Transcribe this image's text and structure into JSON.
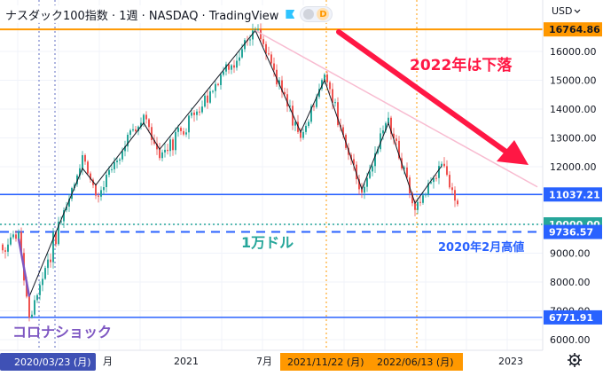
{
  "header": {
    "title": "ナスダック100指数 · 1週 · NASDAQ · TradingView",
    "currency": "USD",
    "d_badge": "D"
  },
  "annotations": {
    "decline": "2022年は下落",
    "ten_thousand": "1万ドル",
    "feb2020_high": "2020年2月高値",
    "covid_crash": "コロナショック"
  },
  "price_labels": {
    "top": "16764.86",
    "current": "11037.21",
    "ten_k": "10000.00",
    "feb_high": "9736.57",
    "covid_low": "6771.91"
  },
  "time_labels": {
    "left_date": "2020/03/23 (月)",
    "x_2021": "2021",
    "x_jul": "7月",
    "peak_date": "2021/11/22 (月)",
    "jun_date": "2022/06/13 (月)",
    "x_2023": "2023",
    "month_partial": "月"
  },
  "colors": {
    "up": "#26a69a",
    "down": "#ef5350",
    "level_line": "#2962ff",
    "top_line": "#ff9800",
    "annotation_red": "#ff1744",
    "teal_text": "#26a69a",
    "purple_text": "#7e57c2",
    "blue_text": "#2962ff",
    "trend_pink": "#f8bbd0"
  },
  "chart_data": {
    "type": "candlestick",
    "title": "ナスダック100指数",
    "timeframe": "1週",
    "exchange": "NASDAQ",
    "y_ticks": [
      6000,
      7000,
      8000,
      9000,
      10000,
      11000,
      12000,
      13000,
      14000,
      15000,
      16000
    ],
    "ylim": [
      5950,
      17350
    ],
    "x_tick_labels": [
      "2021",
      "7月",
      "2023"
    ],
    "horizontal_levels": [
      16764.86,
      11037.21,
      10000.0,
      9736.57,
      6771.91
    ],
    "key_points": [
      {
        "date": "2020-02",
        "close": 9736.57
      },
      {
        "date": "2020-03-23",
        "close": 6771.91
      },
      {
        "date": "2020-09",
        "close": 12400
      },
      {
        "date": "2020-10",
        "close": 11000
      },
      {
        "date": "2021-02",
        "close": 13800
      },
      {
        "date": "2021-03",
        "close": 12300
      },
      {
        "date": "2021-11-22",
        "close": 16764.86
      },
      {
        "date": "2022-03",
        "close": 13000
      },
      {
        "date": "2022-04",
        "close": 15200
      },
      {
        "date": "2022-06-13",
        "close": 11100
      },
      {
        "date": "2022-08",
        "close": 13700
      },
      {
        "date": "2022-10",
        "close": 10500
      },
      {
        "date": "2022-12",
        "close": 12100
      },
      {
        "date": "2023-01",
        "close": 10700
      }
    ]
  }
}
